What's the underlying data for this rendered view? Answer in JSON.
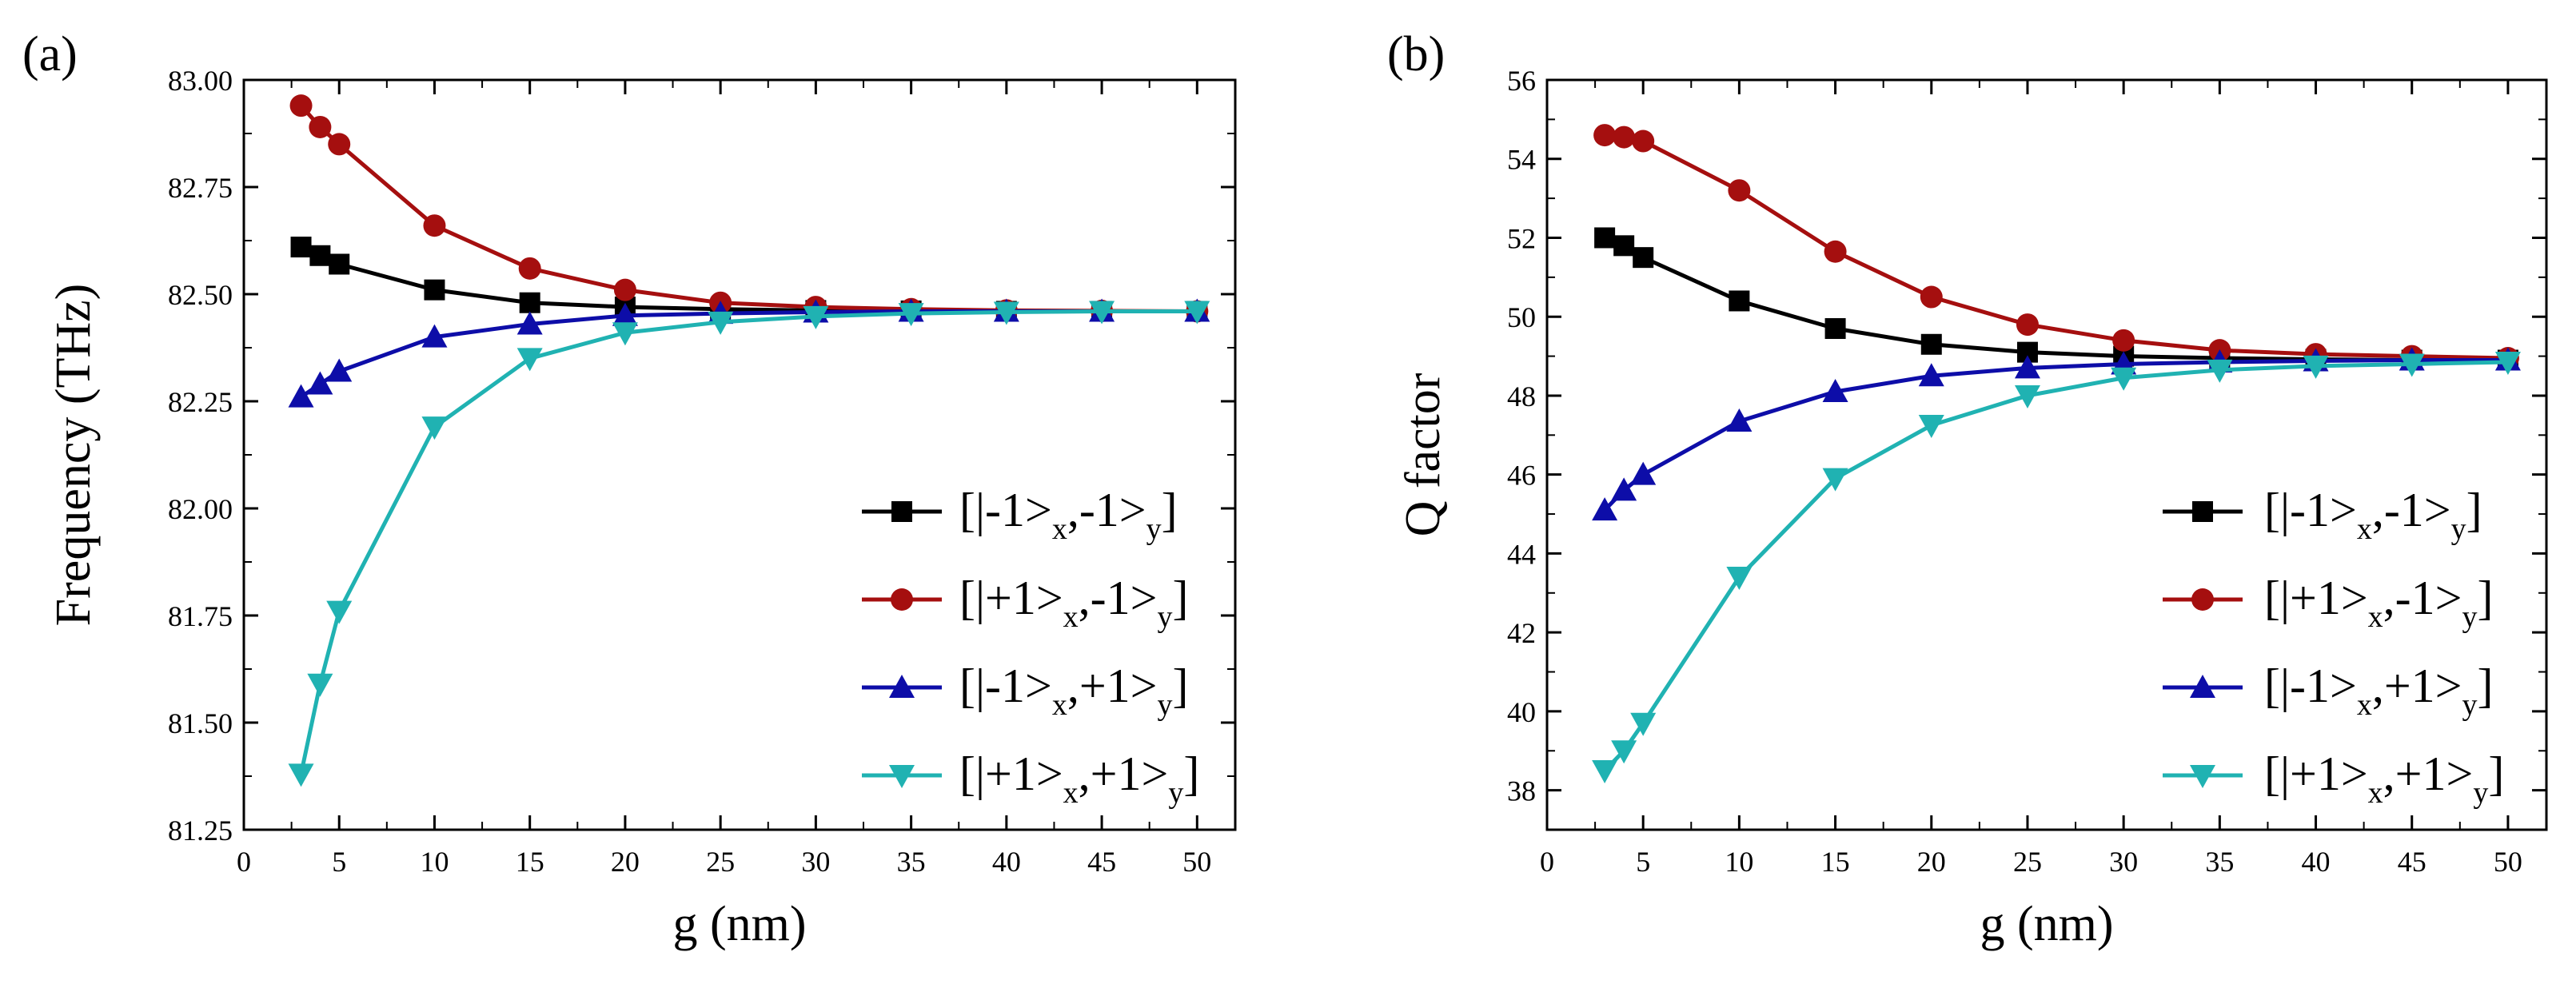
{
  "panels": [
    {
      "label": "(a)"
    },
    {
      "label": "(b)"
    }
  ],
  "legend": [
    {
      "pre": "[|-1>",
      "sub1": "x",
      "mid": ",-1>",
      "sub2": "y",
      "post": "]"
    },
    {
      "pre": "[|+1>",
      "sub1": "x",
      "mid": ",-1>",
      "sub2": "y",
      "post": "]"
    },
    {
      "pre": "[|-1>",
      "sub1": "x",
      "mid": ",+1>",
      "sub2": "y",
      "post": "]"
    },
    {
      "pre": "[|+1>",
      "sub1": "x",
      "mid": ",+1>",
      "sub2": "y",
      "post": "]"
    }
  ],
  "chart_data": [
    {
      "type": "line",
      "panel": "(a)",
      "xlabel": "g (nm)",
      "ylabel": "Frequency (THz)",
      "xlim": [
        0,
        52
      ],
      "ylim": [
        81.25,
        83.0
      ],
      "xticks": [
        0,
        5,
        10,
        15,
        20,
        25,
        30,
        35,
        40,
        45,
        50
      ],
      "yticks": [
        "81.25",
        "81.50",
        "81.75",
        "82.00",
        "82.25",
        "82.50",
        "82.75",
        "83.00"
      ],
      "x": [
        3,
        4,
        5,
        10,
        15,
        20,
        25,
        30,
        35,
        40,
        45,
        50
      ],
      "legend_position": "bottom-right",
      "series": [
        {
          "name": "[|-1>x,-1>y]",
          "color": "#000000",
          "marker": "square",
          "values": [
            82.61,
            82.59,
            82.57,
            82.51,
            82.48,
            82.47,
            82.465,
            82.462,
            82.461,
            82.46,
            82.46,
            82.46
          ]
        },
        {
          "name": "[|+1>x,-1>y]",
          "color": "#a50f0f",
          "marker": "circle",
          "values": [
            82.94,
            82.89,
            82.85,
            82.66,
            82.56,
            82.51,
            82.48,
            82.47,
            82.465,
            82.462,
            82.461,
            82.46
          ]
        },
        {
          "name": "[|-1>x,+1>y]",
          "color": "#0d0da8",
          "marker": "triangle-up",
          "values": [
            82.26,
            82.29,
            82.32,
            82.4,
            82.43,
            82.45,
            82.455,
            82.458,
            82.46,
            82.46,
            82.46,
            82.46
          ]
        },
        {
          "name": "[|+1>x,+1>y]",
          "color": "#20b2b2",
          "marker": "triangle-down",
          "values": [
            81.38,
            81.59,
            81.76,
            82.19,
            82.35,
            82.41,
            82.435,
            82.448,
            82.455,
            82.458,
            82.46,
            82.46
          ]
        }
      ]
    },
    {
      "type": "line",
      "panel": "(b)",
      "xlabel": "g (nm)",
      "ylabel": "Q factor",
      "xlim": [
        0,
        52
      ],
      "ylim": [
        37,
        56
      ],
      "xticks": [
        0,
        5,
        10,
        15,
        20,
        25,
        30,
        35,
        40,
        45,
        50
      ],
      "yticks": [
        "38",
        "40",
        "42",
        "44",
        "46",
        "48",
        "50",
        "52",
        "54",
        "56"
      ],
      "x": [
        3,
        4,
        5,
        10,
        15,
        20,
        25,
        30,
        35,
        40,
        45,
        50
      ],
      "legend_position": "bottom-right",
      "series": [
        {
          "name": "[|-1>x,-1>y]",
          "color": "#000000",
          "marker": "square",
          "values": [
            52.0,
            51.8,
            51.5,
            50.4,
            49.7,
            49.3,
            49.1,
            49.0,
            48.95,
            48.92,
            48.9,
            48.9
          ]
        },
        {
          "name": "[|+1>x,-1>y]",
          "color": "#a50f0f",
          "marker": "circle",
          "values": [
            54.6,
            54.55,
            54.45,
            53.2,
            51.65,
            50.5,
            49.8,
            49.4,
            49.15,
            49.05,
            49.0,
            48.95
          ]
        },
        {
          "name": "[|-1>x,+1>y]",
          "color": "#0d0da8",
          "marker": "triangle-up",
          "values": [
            45.1,
            45.6,
            46.0,
            47.35,
            48.1,
            48.5,
            48.7,
            48.8,
            48.85,
            48.88,
            48.9,
            48.9
          ]
        },
        {
          "name": "[|+1>x,+1>y]",
          "color": "#20b2b2",
          "marker": "triangle-down",
          "values": [
            38.5,
            39.0,
            39.7,
            43.4,
            45.9,
            47.25,
            48.0,
            48.45,
            48.65,
            48.75,
            48.8,
            48.85
          ]
        }
      ]
    }
  ]
}
